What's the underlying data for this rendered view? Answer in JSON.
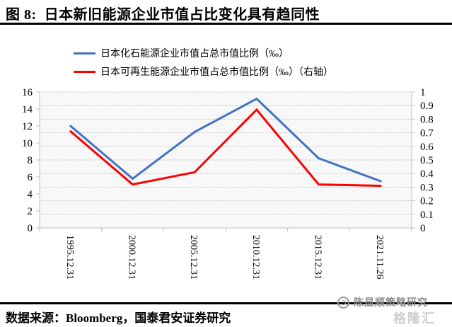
{
  "header": {
    "title": "图 8:  日本新旧能源企业市值占比变化具有趋同性"
  },
  "chart_data": {
    "type": "line",
    "categories": [
      "1995.12.31",
      "2000.12.31",
      "2005.12.31",
      "2010.12.31",
      "2015.12.31",
      "2021.11.26"
    ],
    "series": [
      {
        "name": "日本化石能源企业市值占总市值比例（‰）",
        "axis": "left",
        "color": "#4472C4",
        "values": [
          12.0,
          5.8,
          11.3,
          15.2,
          8.2,
          5.5
        ]
      },
      {
        "name": "日本可再生能源企业市值占总市值比例（‰）（右轴）",
        "axis": "right",
        "color": "#FF0000",
        "values": [
          0.71,
          0.32,
          0.41,
          0.87,
          0.32,
          0.31
        ]
      }
    ],
    "left_axis": {
      "min": 0,
      "max": 16,
      "ticks": [
        0,
        2,
        4,
        6,
        8,
        10,
        12,
        14,
        16
      ]
    },
    "right_axis": {
      "min": 0,
      "max": 1,
      "ticks": [
        0,
        0.1,
        0.2,
        0.3,
        0.4,
        0.5,
        0.6,
        0.7,
        0.8,
        0.9,
        1
      ]
    },
    "legend_position": "top",
    "grid": true,
    "colors": {
      "gridline": "#dcdcdc",
      "axis": "#bfbfbf",
      "hatch": "#ececec",
      "tick_label": "#000000"
    }
  },
  "footer": {
    "source": "数据来源：Bloomberg，国泰君安证券研究"
  },
  "watermark": {
    "text": "陈显顺策略研究",
    "logo_text": "格隆汇"
  }
}
